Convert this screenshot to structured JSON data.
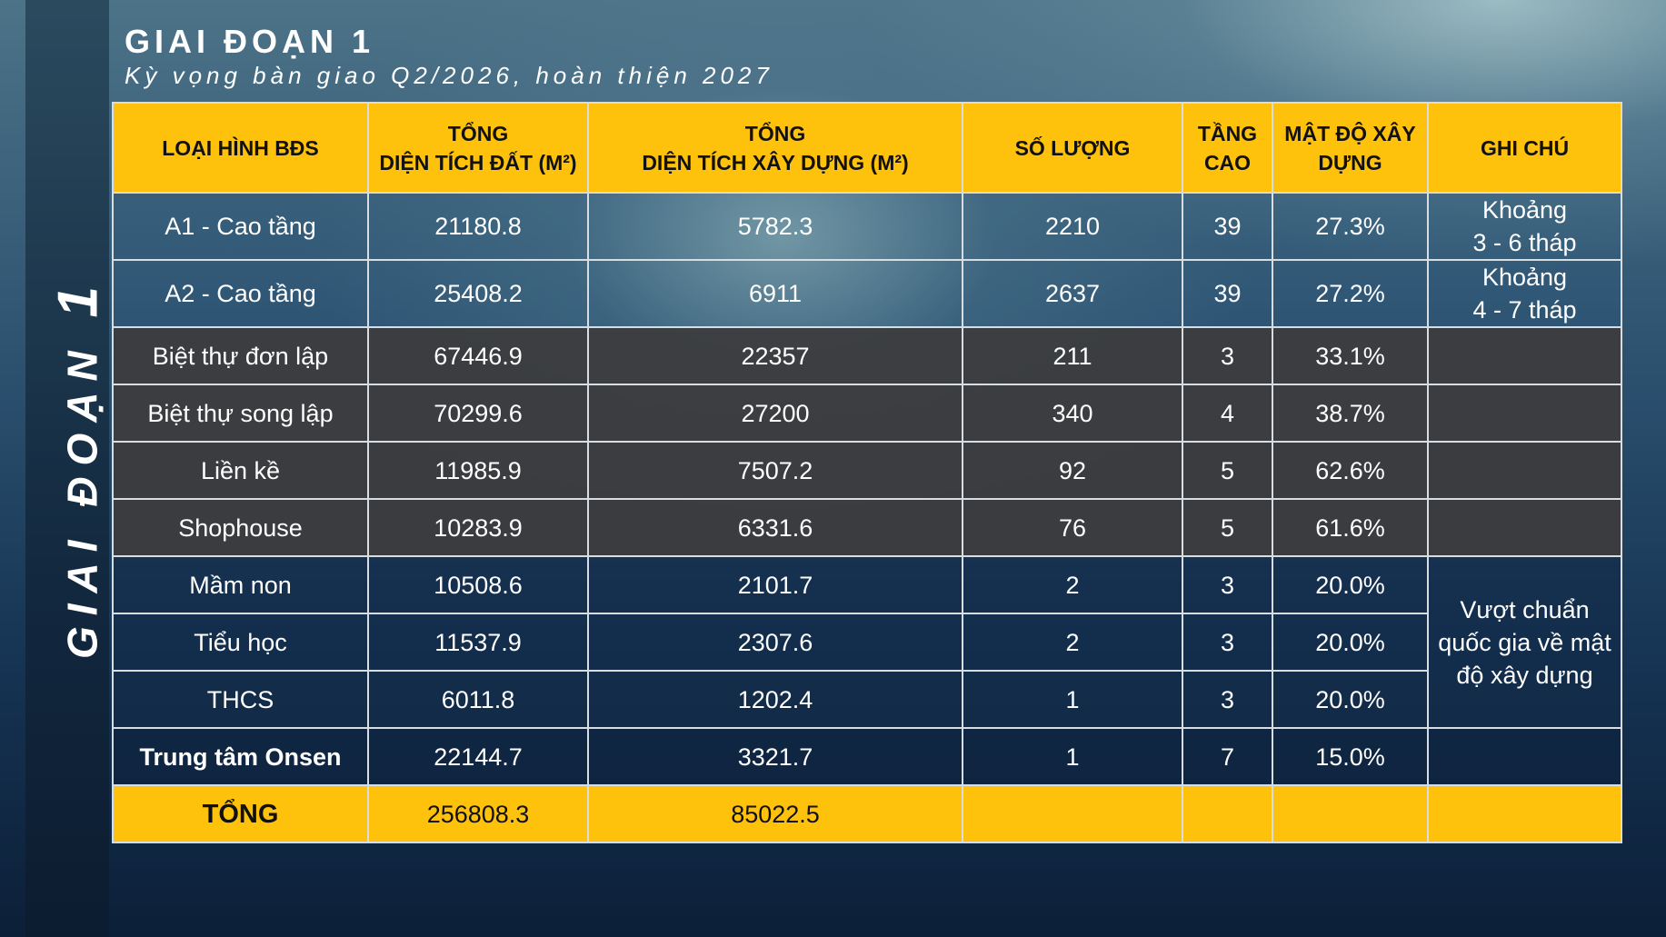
{
  "side_title": {
    "text": "GIAI ĐOẠN",
    "number": "1"
  },
  "heading": {
    "title": "GIAI ĐOẠN 1",
    "subtitle": "Kỳ vọng bàn giao Q2/2026, hoàn thiện 2027"
  },
  "table": {
    "headers": [
      "LOẠI HÌNH BĐS",
      "TỔNG\nDIỆN TÍCH ĐẤT (M²)",
      "TỔNG\nDIỆN TÍCH XÂY DỰNG (M²)",
      "SỐ LƯỢNG",
      "TẦNG\nCAO",
      "MẬT ĐỘ XÂY\nDỰNG",
      "GHI CHÚ"
    ],
    "rows": [
      {
        "type": "A1 - Cao tầng",
        "land_area": "21180.8",
        "build_area": "5782.3",
        "quantity": "2210",
        "floors": "39",
        "density": "27.3%",
        "note": "Khoảng\n3 - 6 tháp"
      },
      {
        "type": "A2 - Cao tầng",
        "land_area": "25408.2",
        "build_area": "6911",
        "quantity": "2637",
        "floors": "39",
        "density": "27.2%",
        "note": "Khoảng\n4 - 7 tháp"
      },
      {
        "type": "Biệt thự đơn lập",
        "land_area": "67446.9",
        "build_area": "22357",
        "quantity": "211",
        "floors": "3",
        "density": "33.1%",
        "note": ""
      },
      {
        "type": "Biệt thự song lập",
        "land_area": "70299.6",
        "build_area": "27200",
        "quantity": "340",
        "floors": "4",
        "density": "38.7%",
        "note": ""
      },
      {
        "type": "Liền kề",
        "land_area": "11985.9",
        "build_area": "7507.2",
        "quantity": "92",
        "floors": "5",
        "density": "62.6%",
        "note": ""
      },
      {
        "type": "Shophouse",
        "land_area": "10283.9",
        "build_area": "6331.6",
        "quantity": "76",
        "floors": "5",
        "density": "61.6%",
        "note": ""
      },
      {
        "type": "Mầm non",
        "land_area": "10508.6",
        "build_area": "2101.7",
        "quantity": "2",
        "floors": "3",
        "density": "20.0%"
      },
      {
        "type": "Tiểu học",
        "land_area": "11537.9",
        "build_area": "2307.6",
        "quantity": "2",
        "floors": "3",
        "density": "20.0%"
      },
      {
        "type": "THCS",
        "land_area": "6011.8",
        "build_area": "1202.4",
        "quantity": "1",
        "floors": "3",
        "density": "20.0%"
      },
      {
        "type": "Trung tâm Onsen",
        "land_area": "22144.7",
        "build_area": "3321.7",
        "quantity": "1",
        "floors": "7",
        "density": "15.0%",
        "note": ""
      }
    ],
    "school_note": "Vượt chuẩn\nquốc gia về mật\nđộ xây dựng",
    "total": {
      "label": "TỔNG",
      "land_area": "256808.3",
      "build_area": "85022.5",
      "quantity": "",
      "floors": "",
      "density": "",
      "note": ""
    }
  },
  "colors": {
    "header_bg": "#fec10c",
    "gray_row_bg": "#3c3c3e",
    "border": "#d8dde2"
  }
}
